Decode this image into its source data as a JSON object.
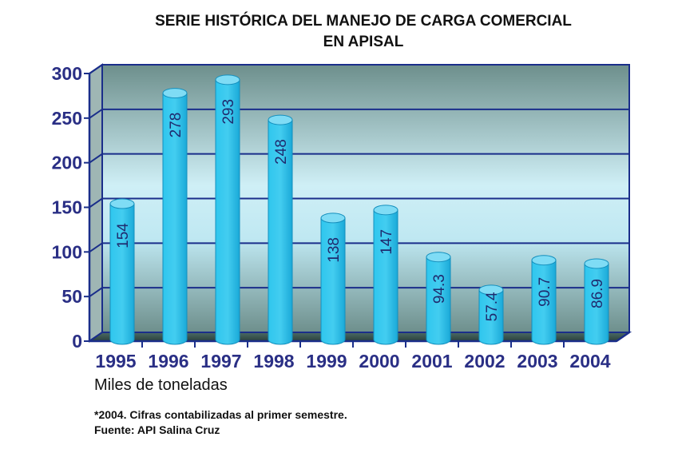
{
  "chart_data": {
    "type": "bar",
    "title": "SERIE HISTÓRICA DEL MANEJO DE CARGA  COMERCIAL",
    "subtitle": "EN APISAL",
    "categories": [
      "1995",
      "1996",
      "1997",
      "1998",
      "1999",
      "2000",
      "2001",
      "2002",
      "2003",
      "2004"
    ],
    "values": [
      154,
      278,
      293,
      248,
      138,
      147,
      94.3,
      57.4,
      90.7,
      86.9
    ],
    "value_labels": [
      "154",
      "278",
      "293",
      "248",
      "138",
      "147",
      "94.3",
      "57.4",
      "90.7",
      "86.9"
    ],
    "yticks": [
      "0",
      "50",
      "100",
      "150",
      "200",
      "250",
      "300"
    ],
    "ylim": [
      0,
      300
    ],
    "grid": true,
    "ylabel": "",
    "xlabel": "",
    "bar_color": "#29bde6",
    "grid_color": "#1a2e8a",
    "axis_label_color": "#2a2f85"
  },
  "footer": {
    "units": "Miles de toneladas",
    "note": "*2004. Cifras contabilizadas al primer semestre.",
    "source": "Fuente: API Salina Cruz"
  }
}
